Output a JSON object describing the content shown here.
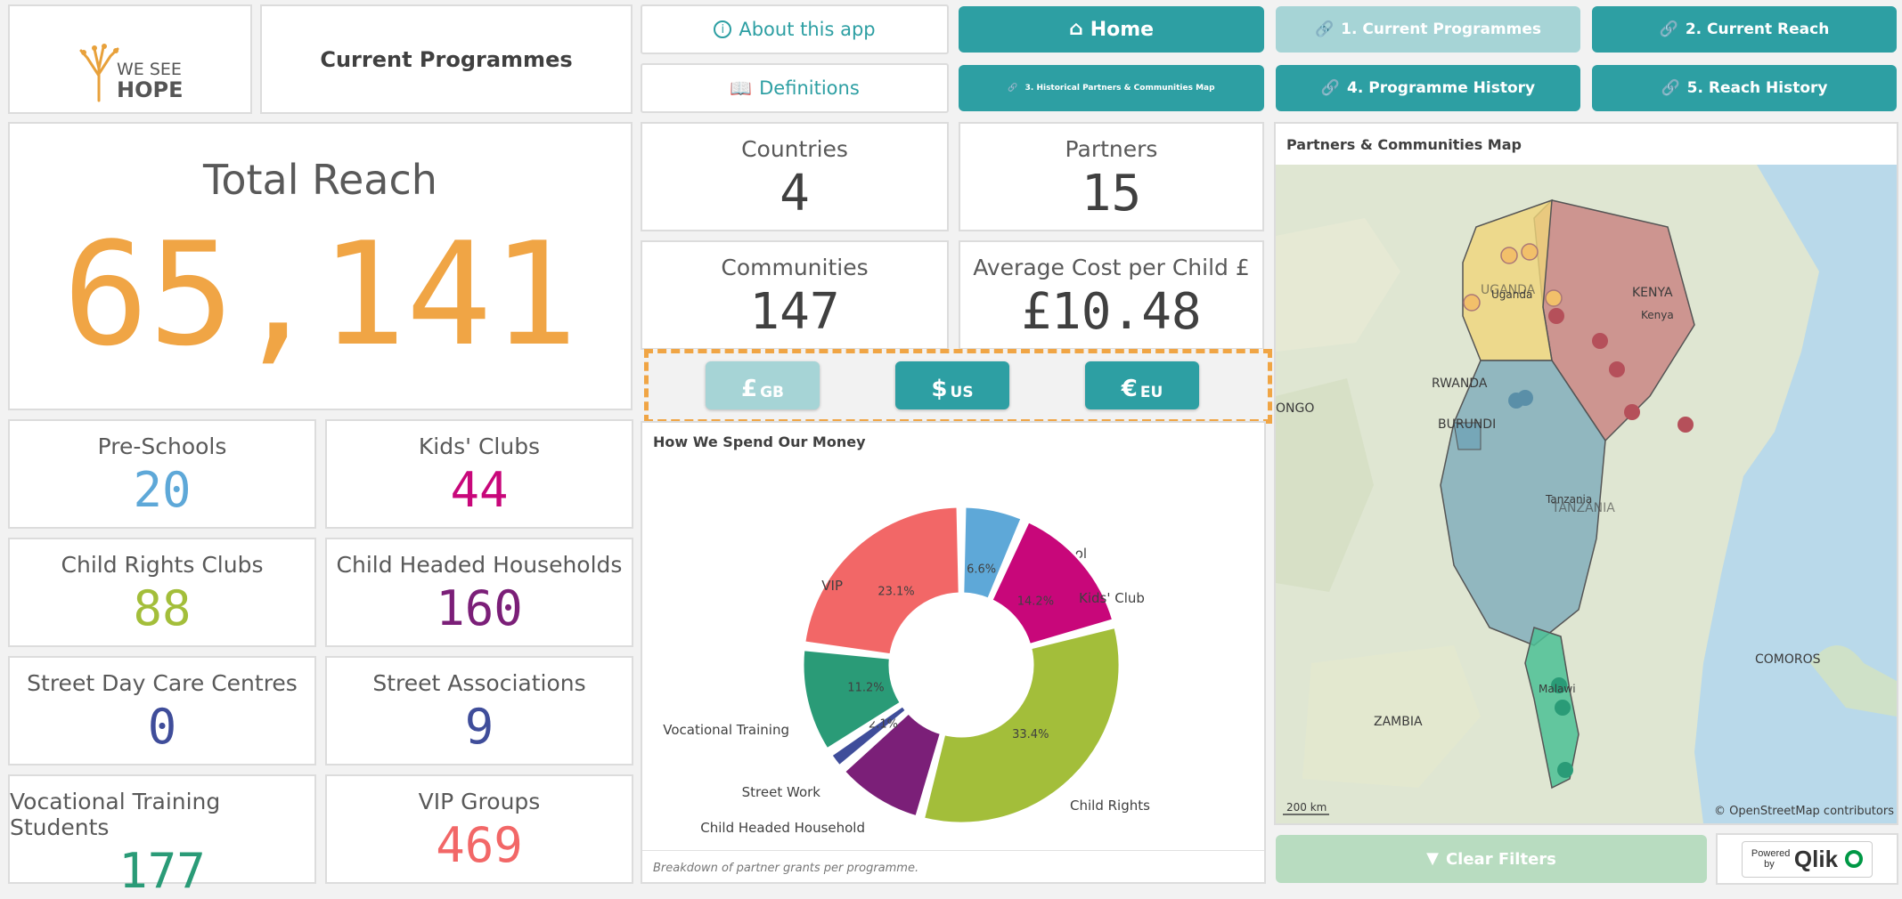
{
  "header": {
    "logo_line1": "WE SEE",
    "logo_line2": "HOPE",
    "sheet_title": "Current Programmes"
  },
  "nav": {
    "about": "About this app",
    "definitions": "Definitions",
    "home": "Home",
    "btn1": "1. Current Programmes",
    "btn2": "2. Current Reach",
    "btn3": "3. Historical Partners & Communities Map",
    "btn4": "4. Programme History",
    "btn5": "5. Reach History"
  },
  "total": {
    "label": "Total Reach",
    "value": "65,141",
    "color": "#f0a545"
  },
  "kpis": [
    {
      "label": "Pre-Schools",
      "value": "20",
      "color": "#5ea8d8"
    },
    {
      "label": "Kids' Clubs",
      "value": "44",
      "color": "#c8077a"
    },
    {
      "label": "Child Rights Clubs",
      "value": "88",
      "color": "#a3be3a"
    },
    {
      "label": "Child Headed Households",
      "value": "160",
      "color": "#7b1f78"
    },
    {
      "label": "Street Day Care Centres",
      "value": "0",
      "color": "#3f4d9a"
    },
    {
      "label": "Street Associations",
      "value": "9",
      "color": "#3f4d9a"
    },
    {
      "label": "Vocational Training Students",
      "value": "177",
      "color": "#2a9b77"
    },
    {
      "label": "VIP Groups",
      "value": "469",
      "color": "#f26767"
    }
  ],
  "stats": [
    {
      "label": "Countries",
      "value": "4"
    },
    {
      "label": "Partners",
      "value": "15"
    },
    {
      "label": "Communities",
      "value": "147"
    },
    {
      "label": "Average Cost per Child £",
      "value": "£10.48"
    }
  ],
  "currency": [
    {
      "symbol": "£",
      "code": "GB",
      "active": false
    },
    {
      "symbol": "$",
      "code": "US",
      "active": true
    },
    {
      "symbol": "€",
      "code": "EU",
      "active": true
    }
  ],
  "spend": {
    "title": "How We Spend Our Money",
    "footnote": "Breakdown of partner grants per programme."
  },
  "chart_data": {
    "type": "pie",
    "title": "How We Spend Our Money",
    "slices": [
      {
        "label": "Pre-School",
        "value": 6.6,
        "pct": "6.6%",
        "color": "#5ea8d8"
      },
      {
        "label": "Kids' Club",
        "value": 14.2,
        "pct": "14.2%",
        "color": "#c8077a"
      },
      {
        "label": "Child Rights",
        "value": 33.4,
        "pct": "33.4%",
        "color": "#a3be3a"
      },
      {
        "label": "Child Headed Household",
        "value": 9.4,
        "pct": "",
        "color": "#7b1f78"
      },
      {
        "label": "Street Work",
        "value": 2.1,
        "pct": "2.1%",
        "color": "#3f4d9a"
      },
      {
        "label": "Vocational Training",
        "value": 11.2,
        "pct": "11.2%",
        "color": "#2a9b77"
      },
      {
        "label": "VIP",
        "value": 23.1,
        "pct": "23.1%",
        "color": "#f26767"
      }
    ]
  },
  "map": {
    "title": "Partners & Communities Map",
    "labels": {
      "uganda_big": "UGANDA",
      "uganda": "Uganda",
      "kenya_big": "KENYA",
      "kenya": "Kenya",
      "tanzania": "Tanzania",
      "tanzania_big": "TANZANIA",
      "rwanda": "RWANDA",
      "burundi": "BURUNDI",
      "congo": "ONGO",
      "zambia": "ZAMBIA",
      "malawi": "Malawi",
      "comoros": "COMOROS"
    },
    "scale": "200 km",
    "attribution": "© OpenStreetMap contributors",
    "colors": {
      "uganda": "#f0d67a",
      "kenya": "#c77a7a",
      "tanzania": "#6fa3b7",
      "malawi": "#4cbf95",
      "sea": "#b9d9ea",
      "land": "#dfe6d2"
    }
  },
  "footer": {
    "clear_filters": "Clear Filters",
    "powered_by": "Powered by",
    "brand": "Qlik"
  }
}
